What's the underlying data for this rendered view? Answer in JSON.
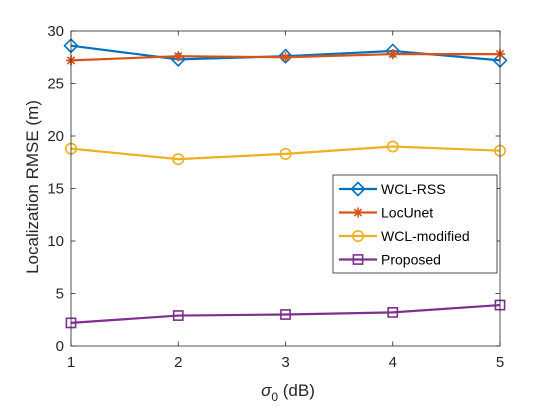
{
  "chart_data": {
    "type": "line",
    "title": "",
    "xlabel": {
      "symbol": "σ",
      "subscript": "0",
      "unit": " (dB)"
    },
    "ylabel": "Localization RMSE (m)",
    "x": [
      1,
      2,
      3,
      4,
      5
    ],
    "xlim": [
      1,
      5
    ],
    "ylim": [
      0,
      30
    ],
    "xticks": [
      1,
      2,
      3,
      4,
      5
    ],
    "yticks": [
      0,
      5,
      10,
      15,
      20,
      25,
      30
    ],
    "grid": false,
    "legend_position": "right",
    "series": [
      {
        "name": "WCL-RSS",
        "marker": "diamond",
        "color": "#0072BD",
        "values": [
          28.6,
          27.3,
          27.6,
          28.1,
          27.2
        ]
      },
      {
        "name": "LocUnet",
        "marker": "asterisk",
        "color": "#D95319",
        "values": [
          27.2,
          27.6,
          27.5,
          27.8,
          27.8
        ]
      },
      {
        "name": "WCL-modified",
        "marker": "circle",
        "color": "#EDB120",
        "values": [
          18.8,
          17.8,
          18.3,
          19.0,
          18.6
        ]
      },
      {
        "name": "Proposed",
        "marker": "square",
        "color": "#7E2F8E",
        "values": [
          2.2,
          2.9,
          3.0,
          3.2,
          3.9
        ]
      }
    ]
  }
}
